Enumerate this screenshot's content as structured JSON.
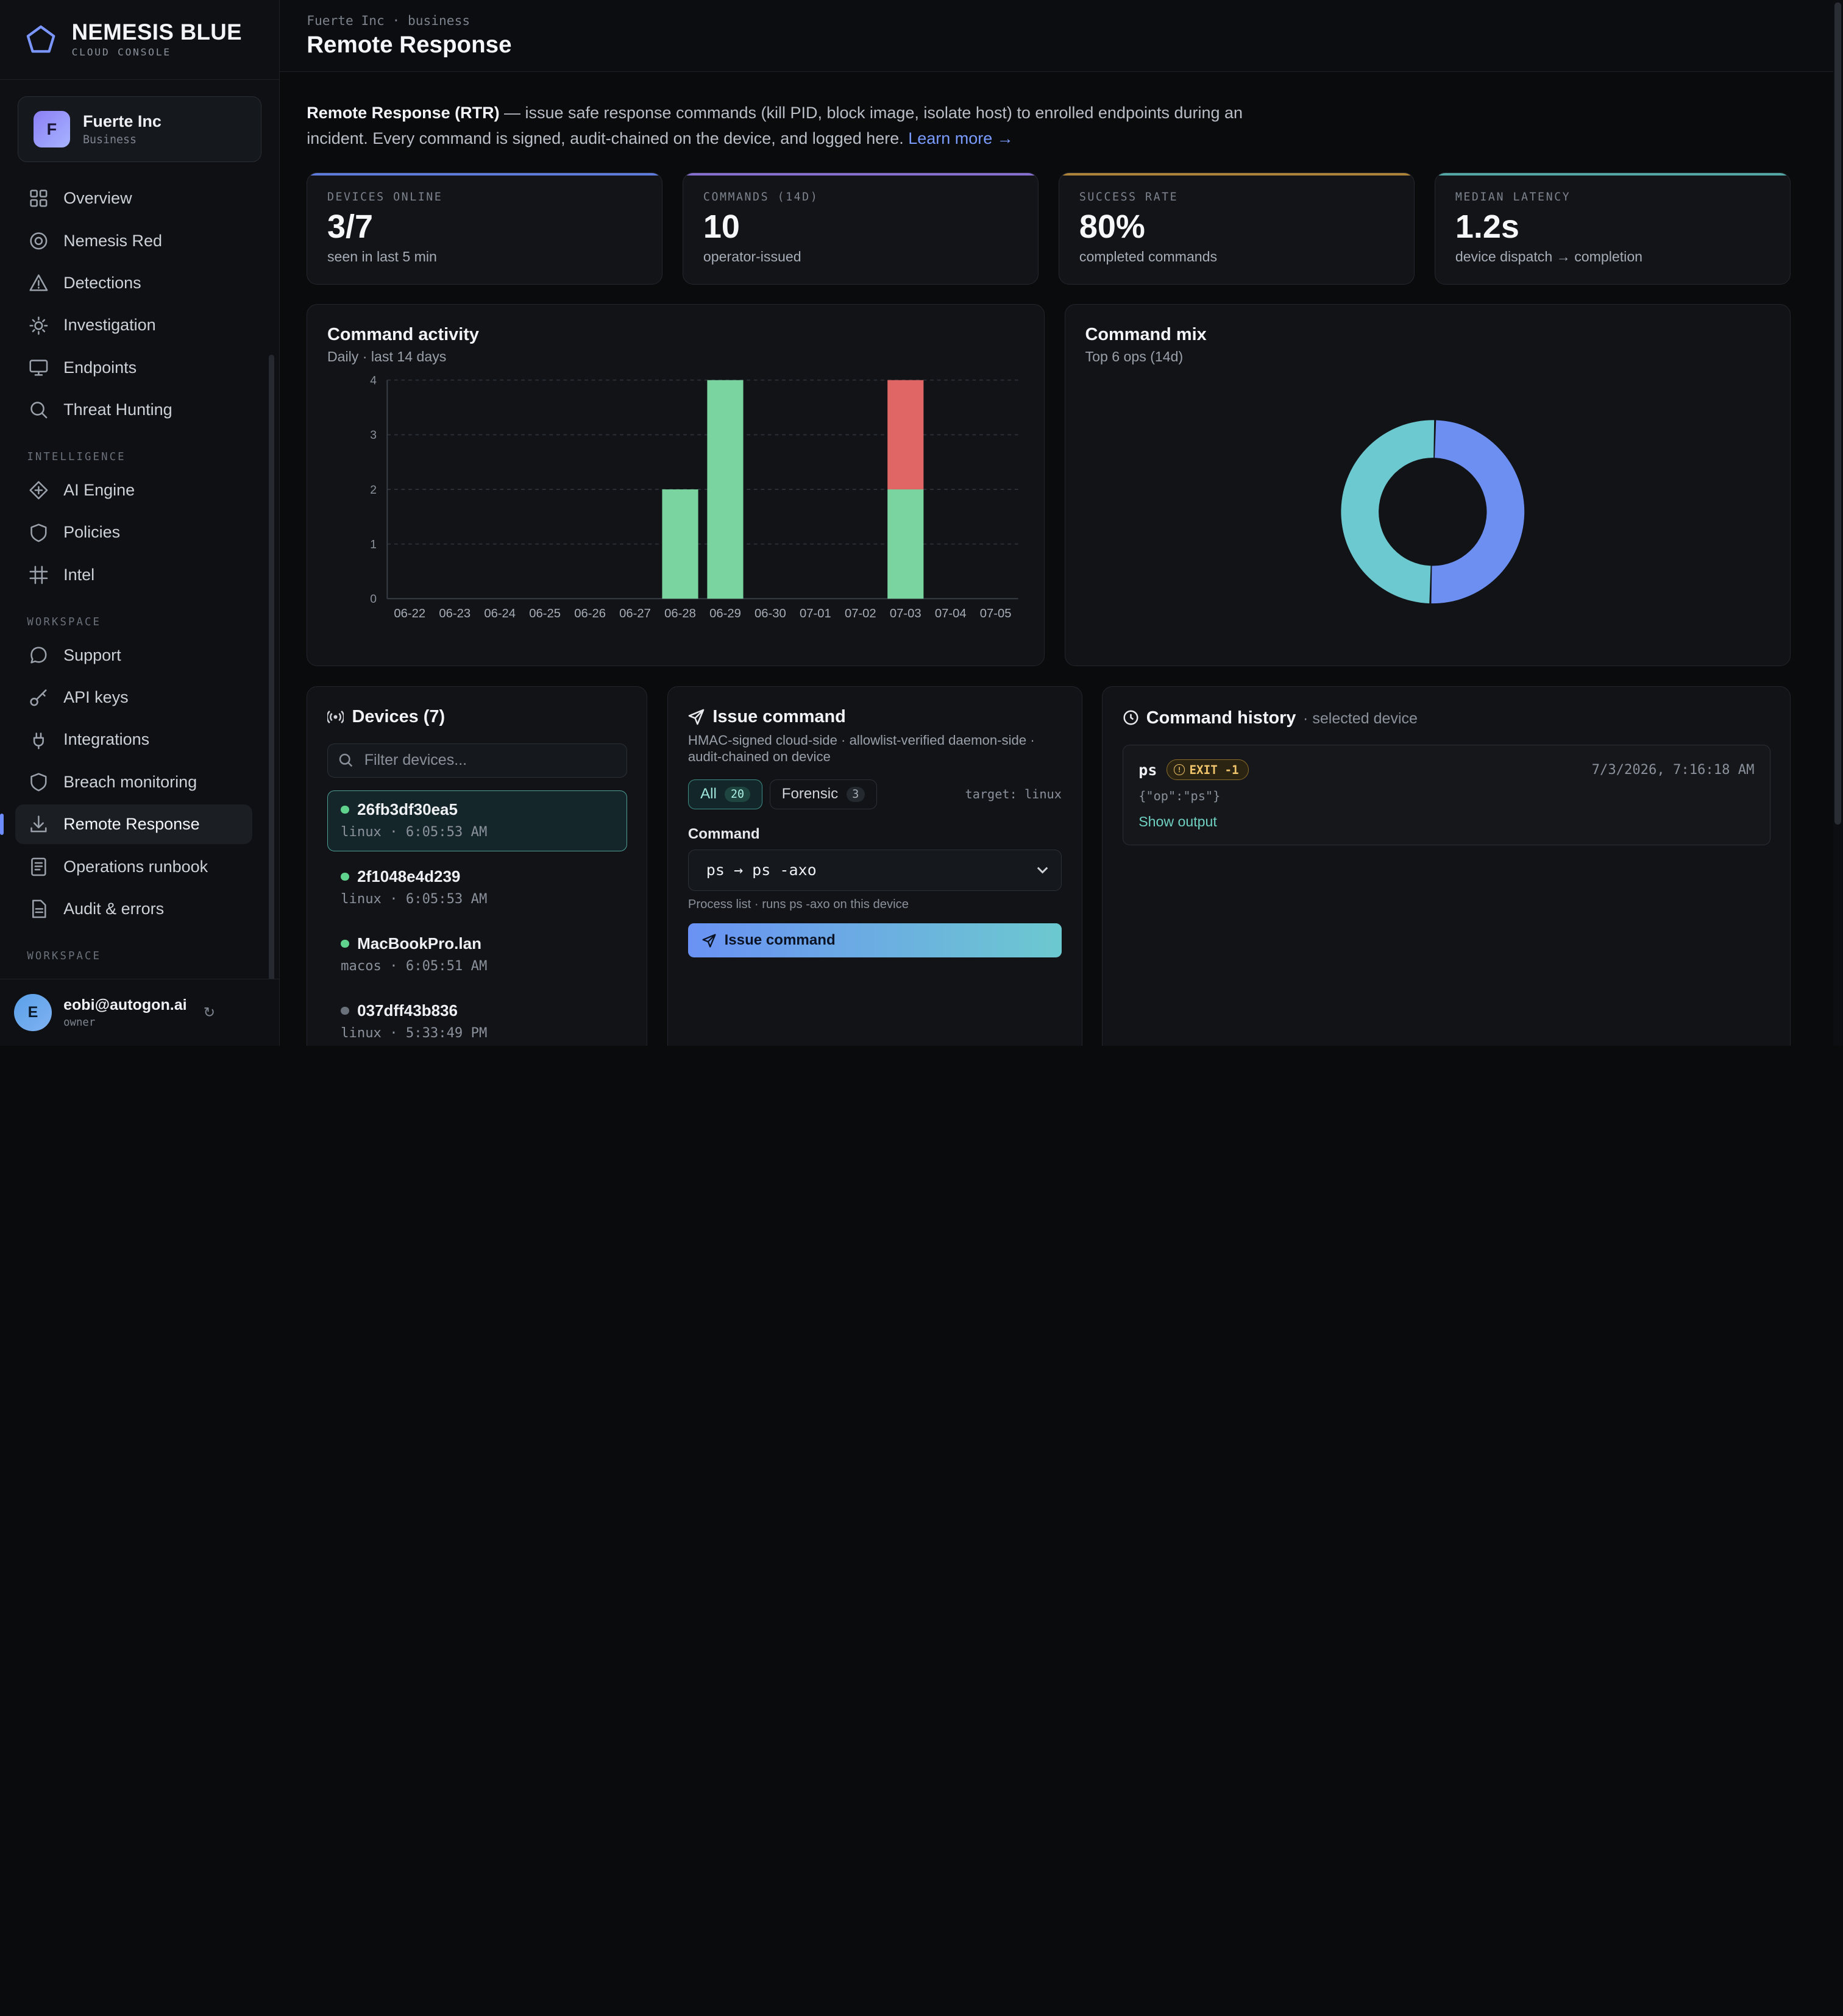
{
  "brand": {
    "title": "NEMESIS BLUE",
    "subtitle": "CLOUD CONSOLE"
  },
  "org": {
    "initial": "F",
    "name": "Fuerte Inc",
    "tier": "Business"
  },
  "nav": {
    "main": [
      {
        "label": "Overview",
        "icon": "grid-icon"
      },
      {
        "label": "Nemesis Red",
        "icon": "target-icon"
      },
      {
        "label": "Detections",
        "icon": "warning-icon"
      },
      {
        "label": "Investigation",
        "icon": "bug-icon"
      },
      {
        "label": "Endpoints",
        "icon": "monitor-icon"
      },
      {
        "label": "Threat Hunting",
        "icon": "search-icon"
      }
    ],
    "intelligence_label": "INTELLIGENCE",
    "intelligence": [
      {
        "label": "AI Engine",
        "icon": "sparkle-icon"
      },
      {
        "label": "Policies",
        "icon": "shield-icon"
      },
      {
        "label": "Intel",
        "icon": "chip-icon"
      }
    ],
    "workspace_label": "WORKSPACE",
    "workspace": [
      {
        "label": "Support",
        "icon": "chat-icon"
      },
      {
        "label": "API keys",
        "icon": "key-icon"
      },
      {
        "label": "Integrations",
        "icon": "plug-icon"
      },
      {
        "label": "Breach monitoring",
        "icon": "shield-icon"
      },
      {
        "label": "Remote Response",
        "icon": "download-icon",
        "active": true
      },
      {
        "label": "Operations runbook",
        "icon": "book-icon"
      },
      {
        "label": "Audit & errors",
        "icon": "file-icon"
      }
    ],
    "workspace2_label": "WORKSPACE"
  },
  "user": {
    "initial": "E",
    "email": "eobi@autogon.ai",
    "role": "owner"
  },
  "header": {
    "breadcrumb": "Fuerte Inc · business",
    "title": "Remote Response"
  },
  "intro": {
    "bold": "Remote Response (RTR)",
    "text": " — issue safe response commands (kill PID, block image, isolate host) to enrolled endpoints during an incident. Every command is signed, audit-chained on the device, and logged here. ",
    "link": "Learn more →"
  },
  "stats": [
    {
      "label": "DEVICES ONLINE",
      "value": "3/7",
      "note": "seen in last 5 min",
      "accent": "#6d8dff"
    },
    {
      "label": "COMMANDS (14D)",
      "value": "10",
      "note": "operator-issued",
      "accent": "#9b7ff0"
    },
    {
      "label": "SUCCESS RATE",
      "value": "80%",
      "note": "completed commands",
      "accent": "#c9963f"
    },
    {
      "label": "MEDIAN LATENCY",
      "value": "1.2s",
      "note": "device dispatch → completion",
      "accent": "#5fc2c0"
    }
  ],
  "activity": {
    "title": "Command activity",
    "subtitle": "Daily · last 14 days"
  },
  "mix": {
    "title": "Command mix",
    "subtitle": "Top 6 ops (14d)"
  },
  "chart_data": [
    {
      "type": "bar",
      "stacked": true,
      "categories": [
        "06-22",
        "06-23",
        "06-24",
        "06-25",
        "06-26",
        "06-27",
        "06-28",
        "06-29",
        "06-30",
        "07-01",
        "07-02",
        "07-03",
        "07-04",
        "07-05"
      ],
      "series": [
        {
          "values": [
            0,
            0,
            0,
            0,
            0,
            0,
            2,
            4,
            0,
            0,
            0,
            2,
            0,
            0
          ],
          "color": "#79d4a0"
        },
        {
          "values": [
            0,
            0,
            0,
            0,
            0,
            0,
            0,
            0,
            0,
            0,
            0,
            2,
            0,
            0
          ],
          "color": "#e06666"
        }
      ],
      "ylim": [
        0,
        4
      ],
      "yticks": [
        0,
        1,
        2,
        3,
        4
      ],
      "grid": true
    },
    {
      "type": "pie",
      "donut": true,
      "values": [
        50,
        50
      ],
      "colors": [
        "#6d8ff2",
        "#6cc9cf"
      ]
    }
  ],
  "devices": {
    "title": "Devices (7)",
    "filter_placeholder": "Filter devices...",
    "items": [
      {
        "name": "26fb3df30ea5",
        "meta": "linux · 6:05:53 AM",
        "online": true,
        "selected": true
      },
      {
        "name": "2f1048e4d239",
        "meta": "linux · 6:05:53 AM",
        "online": true
      },
      {
        "name": "MacBookPro.lan",
        "meta": "macos · 6:05:51 AM",
        "online": true
      },
      {
        "name": "037dff43b836",
        "meta": "linux · 5:33:49 PM",
        "online": false
      }
    ]
  },
  "issue": {
    "title": "Issue command",
    "subtitle": "HMAC-signed cloud-side · allowlist-verified daemon-side · audit-chained on device",
    "tabs": [
      {
        "label": "All",
        "count": "20"
      },
      {
        "label": "Forensic",
        "count": "3"
      }
    ],
    "target": "target: linux",
    "command_label": "Command",
    "command_value": "ps → ps -axo",
    "hint": "Process list · runs ps -axo on this device",
    "button": "Issue command"
  },
  "history": {
    "title": "Command history",
    "qualifier": "· selected device",
    "entries": [
      {
        "op": "ps",
        "badge": "EXIT -1",
        "time": "7/3/2026, 7:16:18 AM",
        "args": "{\"op\":\"ps\"}",
        "action": "Show output"
      }
    ]
  }
}
